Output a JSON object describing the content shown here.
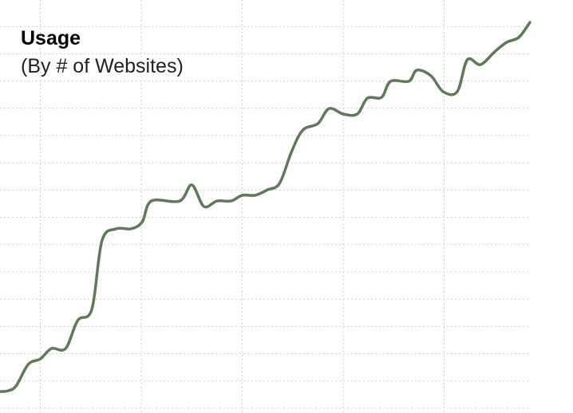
{
  "chart_data": {
    "type": "line",
    "title": "Usage",
    "subtitle": "(By # of Websites)",
    "x": [
      0.6,
      0.68,
      0.76,
      0.88,
      1.0,
      1.11,
      1.25,
      1.37,
      1.51,
      1.61,
      1.75,
      1.9,
      2.01,
      2.1,
      2.38,
      2.5,
      2.62,
      2.75,
      2.89,
      3.0,
      3.13,
      3.25,
      3.37,
      3.49,
      3.6,
      3.75,
      3.86,
      4.0,
      4.14,
      4.24,
      4.38,
      4.47,
      4.65,
      4.73,
      4.87,
      4.99,
      5.13,
      5.23,
      5.36,
      5.5,
      5.62,
      5.74,
      5.85
    ],
    "series": [
      {
        "color": "#5f7a58",
        "values": [
          0.61,
          0.64,
          0.82,
          1.61,
          1.81,
          2.19,
          2.19,
          3.22,
          3.63,
          6.14,
          6.58,
          6.58,
          6.84,
          7.6,
          7.6,
          8.19,
          7.4,
          7.6,
          7.6,
          7.81,
          7.81,
          8.01,
          8.25,
          9.42,
          10.2,
          10.44,
          10.99,
          10.79,
          10.79,
          11.37,
          11.4,
          11.99,
          11.99,
          12.4,
          12.19,
          11.61,
          11.61,
          12.78,
          12.6,
          13.07,
          13.42,
          13.6,
          14.15
        ]
      }
    ],
    "xlim": [
      0.6,
      5.85
    ],
    "xticks": [
      1,
      2,
      3,
      4,
      5
    ],
    "ylim": [
      0,
      15
    ],
    "yticks": [
      0,
      1,
      2,
      3,
      4,
      5,
      6,
      7,
      8,
      9,
      10,
      11,
      12,
      13,
      14
    ],
    "grid": true
  }
}
